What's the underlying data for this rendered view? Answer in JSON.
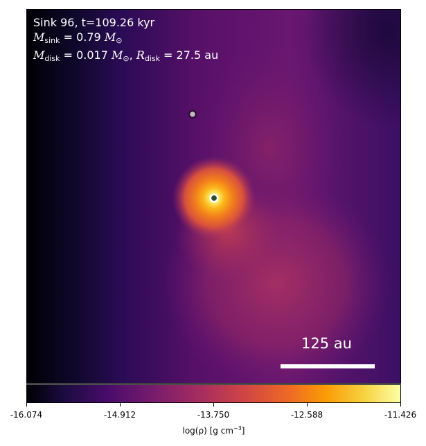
{
  "info": {
    "line1": "Sink 96, t=109.26 kyr",
    "msink_symbol": "M",
    "msink_sub": "sink",
    "msink_value": " = 0.79 ",
    "msink_unit": "M",
    "msink_unit_sub": "⊙",
    "mdisk_symbol": "M",
    "mdisk_sub": "disk",
    "mdisk_value": " = 0.017 ",
    "mdisk_unit": "M",
    "mdisk_unit_sub": "⊙",
    "rdisk_sep": ", ",
    "rdisk_symbol": "R",
    "rdisk_sub": "disk",
    "rdisk_value": " = 27.5 au"
  },
  "scalebar": {
    "label": "125 au"
  },
  "colorbar": {
    "ticks": [
      "-16.074",
      "-14.912",
      "-13.750",
      "-12.588",
      "-11.426"
    ],
    "label_main": "log(ρ) [g cm",
    "label_sup": "−3",
    "label_end": "]"
  },
  "colors": {
    "cmap": [
      "#000004",
      "#1b0c41",
      "#4a0c6b",
      "#781c6d",
      "#a52c60",
      "#cf4446",
      "#ed6925",
      "#fb9b06",
      "#f7d13d",
      "#fcffa4"
    ],
    "primary_sink_ring": "#ffffff",
    "primary_sink_core": "#2e4a2e",
    "secondary_sink_fill": "#c9b4c9"
  }
}
